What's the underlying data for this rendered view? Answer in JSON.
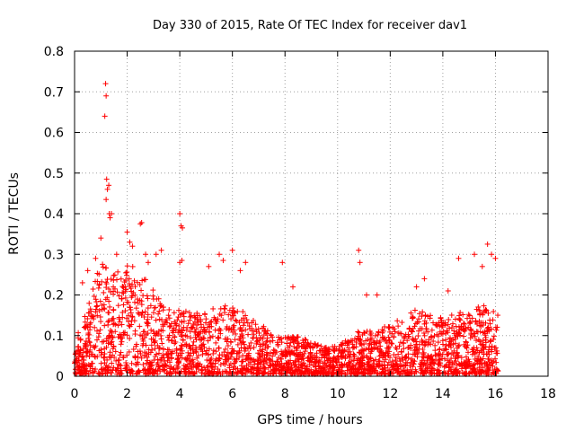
{
  "chart_data": {
    "type": "scatter",
    "title": "Day 330 of 2015, Rate Of TEC Index for receiver dav1",
    "xlabel": "GPS time / hours",
    "ylabel": "ROTI / TECUs",
    "xlim": [
      0,
      18
    ],
    "ylim": [
      0,
      0.8
    ],
    "xticks": [
      0,
      2,
      4,
      6,
      8,
      10,
      12,
      14,
      16,
      18
    ],
    "yticks": [
      0,
      0.1,
      0.2,
      0.3,
      0.4,
      0.5,
      0.6,
      0.7,
      0.8
    ],
    "xtick_labels": [
      "0",
      "2",
      "4",
      "6",
      "8",
      "10",
      "12",
      "14",
      "16",
      "18"
    ],
    "ytick_labels": [
      "0",
      "0.1",
      "0.2",
      "0.3",
      "0.4",
      "0.5",
      "0.6",
      "0.7",
      "0.8"
    ],
    "grid": true,
    "marker": "+",
    "marker_color": "#ff0000",
    "series": [
      {
        "name": "dav1",
        "x_range": [
          0,
          16.1
        ],
        "envelope": [
          [
            0.0,
            0.08
          ],
          [
            0.5,
            0.14
          ],
          [
            1.0,
            0.25
          ],
          [
            1.5,
            0.22
          ],
          [
            2.0,
            0.24
          ],
          [
            2.5,
            0.22
          ],
          [
            3.0,
            0.18
          ],
          [
            3.5,
            0.14
          ],
          [
            4.0,
            0.14
          ],
          [
            4.5,
            0.13
          ],
          [
            5.0,
            0.14
          ],
          [
            5.5,
            0.15
          ],
          [
            6.0,
            0.15
          ],
          [
            6.5,
            0.13
          ],
          [
            7.0,
            0.11
          ],
          [
            7.5,
            0.09
          ],
          [
            8.0,
            0.08
          ],
          [
            8.5,
            0.08
          ],
          [
            9.0,
            0.07
          ],
          [
            9.5,
            0.06
          ],
          [
            10.0,
            0.06
          ],
          [
            10.5,
            0.08
          ],
          [
            11.0,
            0.1
          ],
          [
            11.5,
            0.09
          ],
          [
            12.0,
            0.11
          ],
          [
            12.5,
            0.12
          ],
          [
            13.0,
            0.14
          ],
          [
            13.5,
            0.13
          ],
          [
            14.0,
            0.12
          ],
          [
            14.5,
            0.13
          ],
          [
            15.0,
            0.14
          ],
          [
            15.5,
            0.15
          ],
          [
            16.0,
            0.14
          ]
        ],
        "outliers": [
          [
            1.18,
            0.72
          ],
          [
            1.2,
            0.69
          ],
          [
            1.15,
            0.64
          ],
          [
            1.22,
            0.485
          ],
          [
            1.3,
            0.47
          ],
          [
            1.25,
            0.46
          ],
          [
            1.32,
            0.4
          ],
          [
            1.4,
            0.4
          ],
          [
            1.35,
            0.39
          ],
          [
            1.2,
            0.435
          ],
          [
            2.5,
            0.375
          ],
          [
            2.55,
            0.378
          ],
          [
            4.0,
            0.4
          ],
          [
            4.05,
            0.37
          ],
          [
            4.1,
            0.365
          ],
          [
            4.0,
            0.28
          ],
          [
            4.08,
            0.285
          ],
          [
            2.0,
            0.355
          ],
          [
            2.1,
            0.33
          ],
          [
            1.0,
            0.34
          ],
          [
            2.2,
            0.32
          ],
          [
            2.7,
            0.3
          ],
          [
            3.1,
            0.3
          ],
          [
            3.3,
            0.31
          ],
          [
            5.5,
            0.3
          ],
          [
            5.65,
            0.285
          ],
          [
            6.0,
            0.31
          ],
          [
            6.5,
            0.28
          ],
          [
            7.9,
            0.28
          ],
          [
            10.8,
            0.31
          ],
          [
            10.85,
            0.28
          ],
          [
            11.5,
            0.2
          ],
          [
            13.3,
            0.24
          ],
          [
            14.6,
            0.29
          ],
          [
            15.2,
            0.3
          ],
          [
            15.7,
            0.325
          ],
          [
            15.85,
            0.3
          ],
          [
            16.0,
            0.29
          ],
          [
            15.5,
            0.27
          ],
          [
            0.3,
            0.23
          ],
          [
            0.5,
            0.26
          ],
          [
            0.8,
            0.29
          ],
          [
            1.6,
            0.3
          ],
          [
            2.8,
            0.28
          ],
          [
            5.1,
            0.27
          ],
          [
            6.3,
            0.26
          ],
          [
            8.3,
            0.22
          ],
          [
            11.1,
            0.2
          ],
          [
            13.0,
            0.22
          ],
          [
            14.2,
            0.21
          ]
        ]
      }
    ]
  }
}
